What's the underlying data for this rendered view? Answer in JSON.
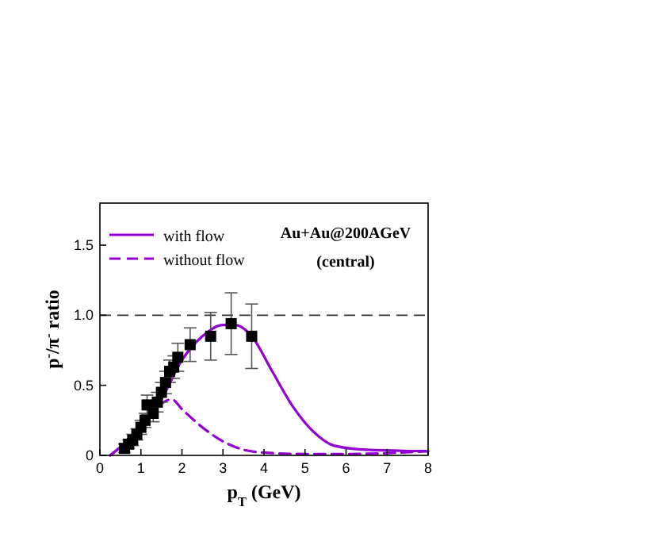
{
  "chart_data": {
    "type": "line",
    "xlabel": "p$_{T}$ (GeV)",
    "ylabel": "p$^{-}$/π$^{-}$ ratio",
    "xlim": [
      0,
      8
    ],
    "ylim": [
      0,
      1.8
    ],
    "xticks": [
      0,
      1,
      2,
      3,
      4,
      5,
      6,
      7,
      8
    ],
    "yticks": [
      0,
      {
        "value": 0.5,
        "label": "0.5"
      },
      {
        "value": 1,
        "label": "1.0"
      },
      {
        "value": 1.5,
        "label": "1.5"
      }
    ],
    "legend": "top left",
    "grid": false,
    "annotations": [
      "Au+Au@200AGeV",
      "(central)"
    ],
    "ref_lines": [
      {
        "axis": "y",
        "value": 1,
        "color": "#333333",
        "line_style": "dashed"
      }
    ],
    "series": [
      {
        "name": "with flow",
        "color": "#9400d3",
        "line_style": "solid",
        "x": [
          0.25,
          0.5,
          1,
          1.5,
          2,
          2.5,
          3,
          3.3,
          3.7,
          4.2,
          4.7,
          5.2,
          5.7,
          6.5,
          8
        ],
        "values": [
          0,
          0.06,
          0.22,
          0.4,
          0.68,
          0.85,
          0.93,
          0.93,
          0.85,
          0.6,
          0.35,
          0.17,
          0.07,
          0.04,
          0.03
        ]
      },
      {
        "name": "without flow",
        "color": "#9400d3",
        "line_style": "dashed",
        "x": [
          0.25,
          0.5,
          1,
          1.5,
          1.75,
          2,
          2.5,
          3,
          3.5,
          4,
          5,
          6,
          8
        ],
        "values": [
          0,
          0.06,
          0.22,
          0.37,
          0.4,
          0.33,
          0.2,
          0.1,
          0.04,
          0.02,
          0.01,
          0.01,
          0.03
        ]
      },
      {
        "type": "scatter",
        "color": "#000000",
        "marker": "square",
        "x": [
          0.6,
          0.7,
          0.8,
          0.9,
          1.0,
          1.1,
          1.15,
          1.3,
          1.4,
          1.5,
          1.6,
          1.7,
          1.8,
          1.9,
          2.2,
          2.7,
          3.2,
          3.7
        ],
        "values": [
          0.05,
          0.08,
          0.11,
          0.15,
          0.2,
          0.25,
          0.36,
          0.3,
          0.38,
          0.45,
          0.52,
          0.6,
          0.63,
          0.7,
          0.79,
          0.85,
          0.94,
          0.85
        ],
        "errors": [
          0.03,
          0.03,
          0.04,
          0.04,
          0.05,
          0.05,
          0.07,
          0.06,
          0.07,
          0.07,
          0.08,
          0.08,
          0.08,
          0.1,
          0.12,
          0.17,
          0.22,
          0.23
        ]
      }
    ]
  }
}
